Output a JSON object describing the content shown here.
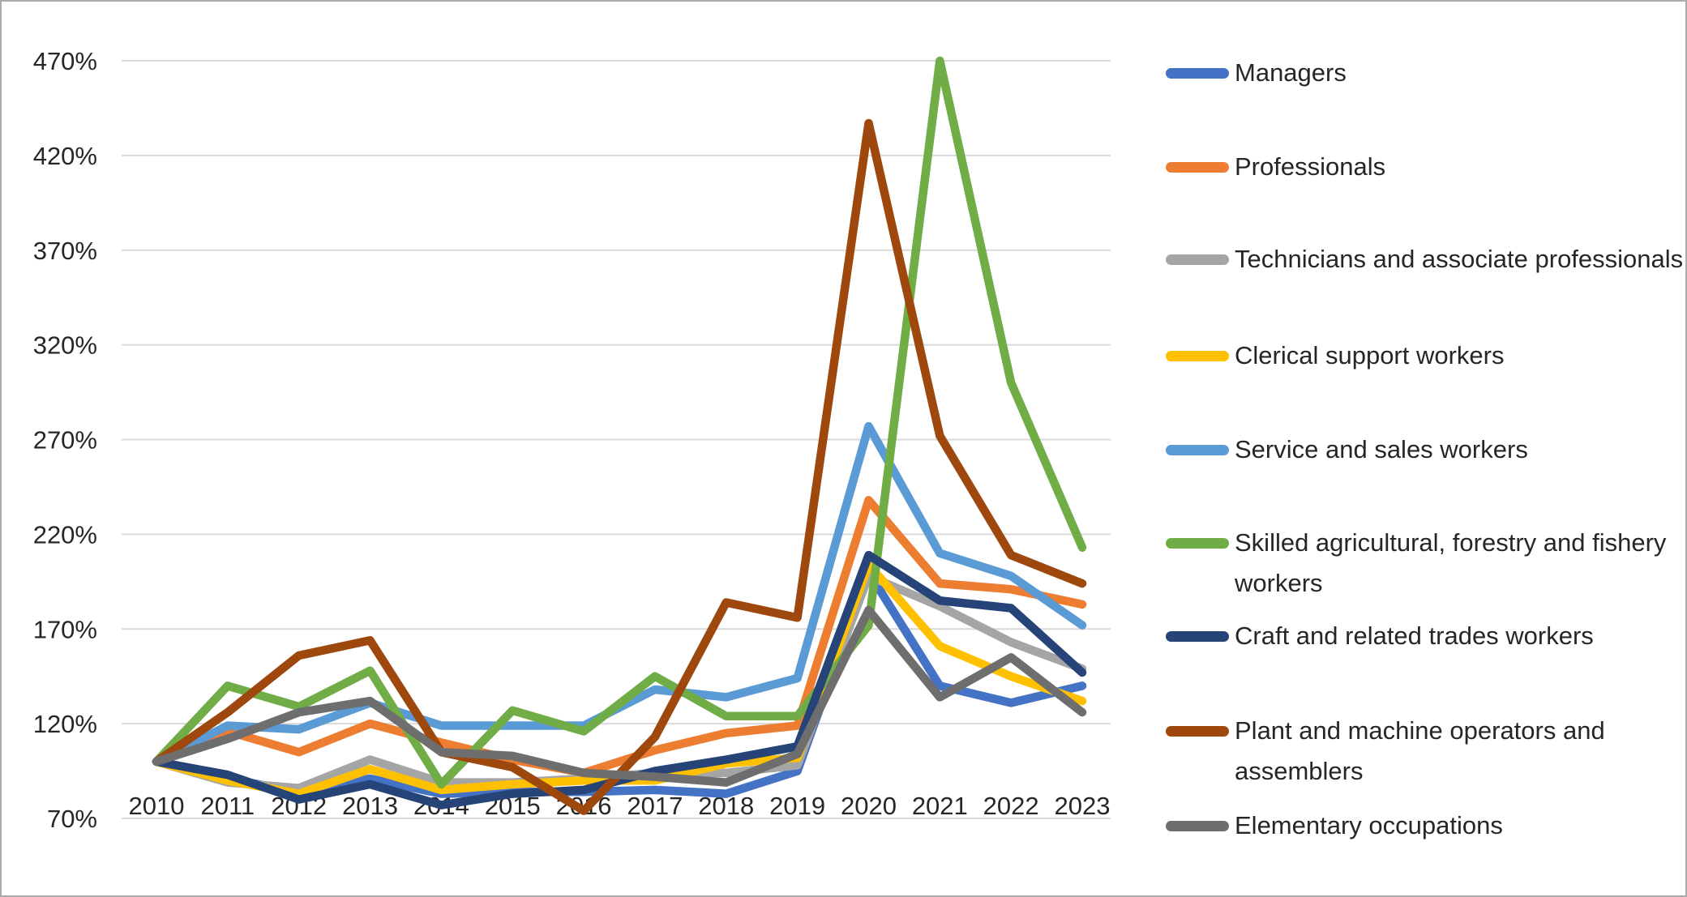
{
  "chart": {
    "background": "#FFFFFF",
    "border_color": "#ABABAB",
    "gridline_color": "#D9D9D9",
    "axis_label_color": "#262626"
  },
  "chart_data": {
    "type": "line",
    "title": "",
    "xlabel": "",
    "ylabel": "",
    "categories": [
      "2010",
      "2011",
      "2012",
      "2013",
      "2014",
      "2015",
      "2016",
      "2017",
      "2018",
      "2019",
      "2020",
      "2021",
      "2022",
      "2023"
    ],
    "y_axis": {
      "min": 70,
      "max": 470,
      "step": 50,
      "suffix": "%",
      "tick_labels": [
        "70%",
        "120%",
        "170%",
        "220%",
        "270%",
        "320%",
        "370%",
        "420%",
        "470%"
      ]
    },
    "grid": true,
    "legend_position": "right",
    "series": [
      {
        "name": "Managers",
        "color": "#4472C4",
        "values": [
          100,
          91,
          84,
          91,
          83,
          84,
          84,
          85,
          83,
          95,
          200,
          140,
          131,
          140
        ]
      },
      {
        "name": "Professionals",
        "color": "#ED7D31",
        "values": [
          100,
          116,
          105,
          120,
          110,
          101,
          94,
          106,
          115,
          119,
          238,
          194,
          191,
          183
        ]
      },
      {
        "name": "Technicians and associate professionals",
        "color": "#A5A5A5",
        "values": [
          100,
          89,
          86,
          101,
          89,
          89,
          91,
          94,
          94,
          98,
          198,
          182,
          163,
          149
        ]
      },
      {
        "name": "Clerical support workers",
        "color": "#FFC000",
        "values": [
          100,
          90,
          83,
          96,
          85,
          88,
          90,
          90,
          99,
          102,
          204,
          161,
          145,
          132
        ]
      },
      {
        "name": "Service and sales workers",
        "color": "#5B9BD5",
        "values": [
          100,
          119,
          117,
          131,
          119,
          119,
          119,
          138,
          134,
          144,
          277,
          210,
          198,
          172
        ]
      },
      {
        "name": "Skilled agricultural, forestry and fishery workers",
        "color": "#70AD47",
        "values": [
          100,
          140,
          129,
          148,
          88,
          127,
          116,
          145,
          124,
          124,
          172,
          470,
          300,
          213
        ]
      },
      {
        "name": "Craft and related trades workers",
        "color": "#264478",
        "values": [
          100,
          93,
          80,
          88,
          77,
          83,
          85,
          95,
          101,
          108,
          209,
          185,
          181,
          147
        ]
      },
      {
        "name": "Plant and machine operators and assemblers",
        "color": "#9E480E",
        "values": [
          100,
          126,
          156,
          164,
          105,
          97,
          74,
          113,
          184,
          176,
          437,
          272,
          209,
          194
        ]
      },
      {
        "name": "Elementary occupations",
        "color": "#6E6E6E",
        "values": [
          100,
          112,
          126,
          132,
          105,
          103,
          94,
          92,
          89,
          104,
          180,
          134,
          155,
          126
        ]
      }
    ]
  }
}
